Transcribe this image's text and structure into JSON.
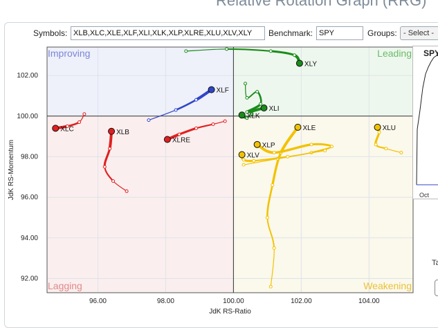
{
  "page": {
    "title": "Relative Rotation Graph (RRG)"
  },
  "toolbar": {
    "symbols_label": "Symbols:",
    "symbols_value": "XLB,XLC,XLE,XLF,XLI,XLK,XLP,XLRE,XLU,XLV,XLY",
    "benchmark_label": "Benchmark:",
    "benchmark_value": "SPY",
    "groups_label": "Groups:",
    "groups_value": "- Select -"
  },
  "side_panel": {
    "title": "SPY",
    "tick_label": "Oct",
    "partial_text": "Ta"
  },
  "colors": {
    "improving_bg": "#eef0fa",
    "leading_bg": "#eef7ee",
    "lagging_bg": "#fbeeee",
    "weakening_bg": "#fbf8ec",
    "improving_text": "#7b86d6",
    "leading_text": "#6bbb6b",
    "lagging_text": "#e08a8a",
    "weakening_text": "#e8c238"
  },
  "chart_data": {
    "type": "scatter",
    "title": "Relative Rotation Graph (RRG)",
    "xlabel": "JdK RS-Ratio",
    "ylabel": "JdK RS-Momentum",
    "xlim": [
      94.5,
      105.3
    ],
    "ylim": [
      91.3,
      103.4
    ],
    "xticks": [
      96,
      98,
      100,
      102,
      104
    ],
    "yticks": [
      92,
      94,
      96,
      98,
      100,
      102
    ],
    "quadrants": {
      "top_left": "Improving",
      "top_right": "Leading",
      "bottom_left": "Lagging",
      "bottom_right": "Weakening"
    },
    "series": [
      {
        "name": "XLY",
        "color": "#1a8c1a",
        "points": [
          [
            98.6,
            103.2
          ],
          [
            99.8,
            103.3
          ],
          [
            101.1,
            103.2
          ],
          [
            101.8,
            103.0
          ],
          [
            101.95,
            102.6
          ]
        ]
      },
      {
        "name": "XLF",
        "color": "#3046c8",
        "points": [
          [
            97.5,
            99.8
          ],
          [
            98.3,
            100.3
          ],
          [
            98.9,
            100.8
          ],
          [
            99.35,
            101.3
          ]
        ]
      },
      {
        "name": "XLI",
        "color": "#1a8c1a",
        "points": [
          [
            100.35,
            101.6
          ],
          [
            100.4,
            100.9
          ],
          [
            100.7,
            101.2
          ],
          [
            100.8,
            100.6
          ],
          [
            100.4,
            100.2
          ],
          [
            100.9,
            100.4
          ]
        ]
      },
      {
        "name": "XLK",
        "color": "#1a8c1a",
        "points": [
          [
            100.55,
            100.1
          ],
          [
            100.4,
            99.9
          ],
          [
            100.25,
            100.05
          ]
        ]
      },
      {
        "name": "XLC",
        "color": "#e02020",
        "points": [
          [
            95.6,
            100.1
          ],
          [
            95.45,
            99.7
          ],
          [
            95.1,
            99.5
          ],
          [
            94.75,
            99.4
          ]
        ]
      },
      {
        "name": "XLB",
        "color": "#e02020",
        "points": [
          [
            96.85,
            96.3
          ],
          [
            96.45,
            96.8
          ],
          [
            96.2,
            97.5
          ],
          [
            96.35,
            98.4
          ],
          [
            96.4,
            99.25
          ]
        ]
      },
      {
        "name": "XLRE",
        "color": "#e02020",
        "points": [
          [
            99.75,
            99.75
          ],
          [
            99.4,
            99.6
          ],
          [
            98.9,
            99.4
          ],
          [
            98.4,
            99.1
          ],
          [
            98.05,
            98.85
          ]
        ]
      },
      {
        "name": "XLE",
        "color": "#f2c200",
        "points": [
          [
            101.1,
            91.6
          ],
          [
            101.2,
            93.5
          ],
          [
            101.0,
            95.0
          ],
          [
            101.15,
            96.6
          ],
          [
            101.4,
            98.2
          ],
          [
            101.9,
            99.45
          ]
        ]
      },
      {
        "name": "XLP",
        "color": "#f2c200",
        "points": [
          [
            100.3,
            97.6
          ],
          [
            101.3,
            97.9
          ],
          [
            102.3,
            98.2
          ],
          [
            102.9,
            98.5
          ],
          [
            102.3,
            98.6
          ],
          [
            101.2,
            98.2
          ],
          [
            100.7,
            98.6
          ]
        ]
      },
      {
        "name": "XLV",
        "color": "#f2c200",
        "points": [
          [
            102.7,
            98.3
          ],
          [
            101.6,
            98.0
          ],
          [
            100.6,
            97.8
          ],
          [
            100.3,
            97.85
          ],
          [
            100.25,
            98.1
          ]
        ]
      },
      {
        "name": "XLU",
        "color": "#f2c200",
        "points": [
          [
            104.95,
            98.2
          ],
          [
            104.5,
            98.4
          ],
          [
            104.2,
            98.6
          ],
          [
            104.3,
            99.2
          ],
          [
            104.25,
            99.45
          ]
        ]
      }
    ]
  }
}
